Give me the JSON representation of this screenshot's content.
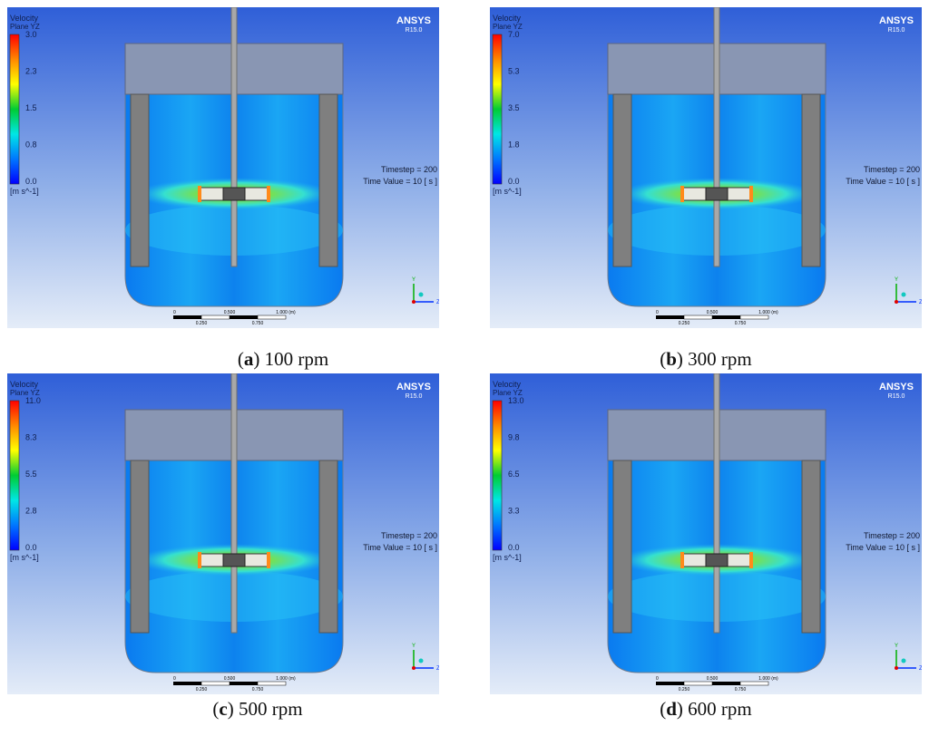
{
  "software": {
    "brand": "ANSYS",
    "release": "R15.0"
  },
  "legend": {
    "title_line1": "Velocity",
    "title_line2": "Plane YZ",
    "unit": "[m s^-1]"
  },
  "solution": {
    "timestep": "Timestep = 200",
    "time_value": "Time Value = 10 [ s ]"
  },
  "scale_bar": {
    "top_labels": [
      "0",
      "0.500",
      "1.000 (m)"
    ],
    "bottom_labels": [
      "0.250",
      "0.750"
    ]
  },
  "axes": {
    "y": "Y",
    "z": "Z"
  },
  "colormap": [
    "#ff0000",
    "#ff8800",
    "#ffff00",
    "#00cc33",
    "#00e6e6",
    "#0077ff",
    "#0000ff"
  ],
  "panels": [
    {
      "letter": "a",
      "speed": "100 rpm",
      "ticks": [
        "3.0",
        "2.3",
        "1.5",
        "0.8",
        "0.0"
      ]
    },
    {
      "letter": "b",
      "speed": "300 rpm",
      "ticks": [
        "7.0",
        "5.3",
        "3.5",
        "1.8",
        "0.0"
      ]
    },
    {
      "letter": "c",
      "speed": "500 rpm",
      "ticks": [
        "11.0",
        "8.3",
        "5.5",
        "2.8",
        "0.0"
      ]
    },
    {
      "letter": "d",
      "speed": "600 rpm",
      "ticks": [
        "13.0",
        "9.8",
        "6.5",
        "3.3",
        "0.0"
      ]
    }
  ]
}
